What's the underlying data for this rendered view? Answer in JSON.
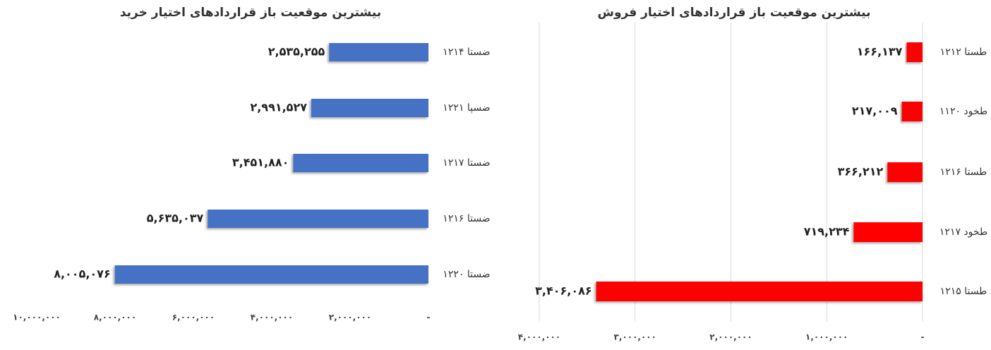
{
  "chart_data": [
    {
      "type": "bar",
      "orientation": "horizontal",
      "title": "بیشترین موقعیت باز قراردادهای اختیار خرید",
      "categories": [
        "ضستا ۱۲۱۴",
        "ضسپا ۱۲۲۱",
        "ضستا ۱۲۱۷",
        "ضستا ۱۲۱۶",
        "ضستا ۱۲۲۰"
      ],
      "values": [
        2535255,
        2991527,
        3451880,
        5635037,
        8005076
      ],
      "value_labels": [
        "۲,۵۳۵,۲۵۵",
        "۲,۹۹۱,۵۲۷",
        "۳,۴۵۱,۸۸۰",
        "۵,۶۳۵,۰۳۷",
        "۸,۰۰۵,۰۷۶"
      ],
      "color": "#4472c4",
      "xlim": [
        0,
        10000000
      ],
      "x_reversed": true,
      "grid": false,
      "xticks": [
        {
          "value": 0,
          "label": "-"
        },
        {
          "value": 2000000,
          "label": "۲,۰۰۰,۰۰۰"
        },
        {
          "value": 4000000,
          "label": "۴,۰۰۰,۰۰۰"
        },
        {
          "value": 6000000,
          "label": "۶,۰۰۰,۰۰۰"
        },
        {
          "value": 8000000,
          "label": "۸,۰۰۰,۰۰۰"
        },
        {
          "value": 10000000,
          "label": "۱۰,۰۰۰,۰۰۰"
        }
      ]
    },
    {
      "type": "bar",
      "orientation": "horizontal",
      "title": "بیشترین موقعیت باز قراردادهای اختیار فروش",
      "categories": [
        "طستا ۱۲۱۲",
        "طخود ۱۱۲۰",
        "طستا ۱۲۱۶",
        "طخود ۱۲۱۷",
        "طستا ۱۲۱۵"
      ],
      "values": [
        166137,
        217009,
        366212,
        719234,
        3406086
      ],
      "value_labels": [
        "۱۶۶,۱۳۷",
        "۲۱۷,۰۰۹",
        "۳۶۶,۲۱۲",
        "۷۱۹,۲۳۴",
        "۳,۴۰۶,۰۸۶"
      ],
      "color": "#ff0000",
      "xlim": [
        0,
        4000000
      ],
      "x_reversed": true,
      "grid": true,
      "xticks": [
        {
          "value": 0,
          "label": "-"
        },
        {
          "value": 1000000,
          "label": "۱,۰۰۰,۰۰۰"
        },
        {
          "value": 2000000,
          "label": "۲,۰۰۰,۰۰۰"
        },
        {
          "value": 3000000,
          "label": "۳,۰۰۰,۰۰۰"
        },
        {
          "value": 4000000,
          "label": "۴,۰۰۰,۰۰۰"
        }
      ]
    }
  ]
}
